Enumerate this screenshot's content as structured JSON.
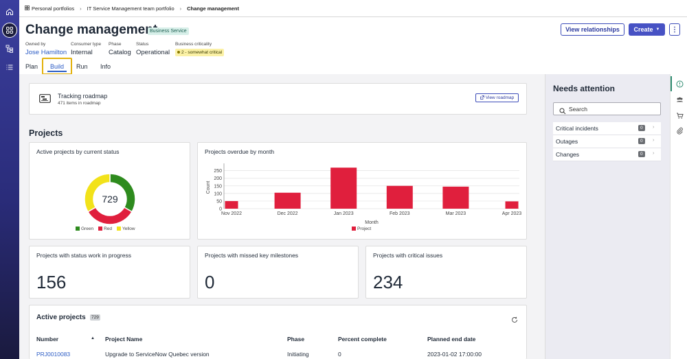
{
  "breadcrumb": {
    "items": [
      "Personal portfolios",
      "IT Service Management team portfolio",
      "Change management"
    ]
  },
  "header": {
    "title": "Change management",
    "badge": "Business Service",
    "meta": [
      {
        "label": "Owned by",
        "value": "Jose Hamilton"
      },
      {
        "label": "Consumer type",
        "value": "Internal"
      },
      {
        "label": "Phase",
        "value": "Catalog"
      },
      {
        "label": "Status",
        "value": "Operational"
      },
      {
        "label": "Business criticality",
        "value": "2 - somewhat critical"
      }
    ],
    "view_relationships": "View relationships",
    "create": "Create",
    "more": "⋮"
  },
  "tabs": [
    "Plan",
    "Build",
    "Run",
    "Info"
  ],
  "active_tab": "Build",
  "roadmap": {
    "title": "Tracking roadmap",
    "subtitle": "471 items in roadmap",
    "button": "View roadmap"
  },
  "projects_section_title": "Projects",
  "donut_card": {
    "title": "Active projects by current status",
    "center_value": "729"
  },
  "bar_card": {
    "title": "Projects overdue by month"
  },
  "chart_data": [
    {
      "type": "pie",
      "title": "Active projects by current status",
      "center_label": "729",
      "categories": [
        "Green",
        "Red",
        "Yellow"
      ],
      "values": [
        243,
        243,
        243
      ],
      "colors": [
        "#2e8b1e",
        "#e01f3d",
        "#f2e21a"
      ]
    },
    {
      "type": "bar",
      "title": "Projects overdue by month",
      "categories": [
        "Nov 2022",
        "Dec 2022",
        "Jan 2023",
        "Feb 2023",
        "Mar 2023",
        "Apr 2023"
      ],
      "series": [
        {
          "name": "Project",
          "values": [
            50,
            105,
            270,
            150,
            145,
            48
          ]
        }
      ],
      "xlabel": "Month",
      "ylabel": "Count",
      "ylim": [
        0,
        280
      ],
      "yticks": [
        0,
        50,
        100,
        150,
        200,
        250
      ],
      "grid": true,
      "legend": "bottom",
      "color": "#e01f3d"
    }
  ],
  "kpis": [
    {
      "title": "Projects with status work in progress",
      "value": "156"
    },
    {
      "title": "Projects with missed key milestones",
      "value": "0"
    },
    {
      "title": "Projects with critical issues",
      "value": "234"
    }
  ],
  "table": {
    "title": "Active projects",
    "count": "729",
    "columns": [
      "Number",
      "Project Name",
      "Phase",
      "Percent complete",
      "Planned end date"
    ],
    "rows": [
      [
        "PRJ0010083",
        "Upgrade to ServiceNow Quebec version",
        "Initiating",
        "0",
        "2023-01-02 17:00:00"
      ]
    ]
  },
  "attention": {
    "title": "Needs attention",
    "search_placeholder": "Search",
    "items": [
      {
        "label": "Critical incidents",
        "count": "0"
      },
      {
        "label": "Outages",
        "count": "0"
      },
      {
        "label": "Changes",
        "count": "0"
      }
    ]
  }
}
